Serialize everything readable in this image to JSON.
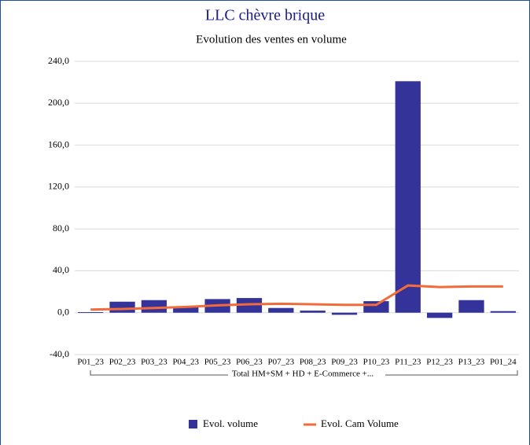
{
  "chart_data": {
    "type": "bar_line",
    "title": "LLC chèvre brique",
    "subtitle": "Evolution des ventes en volume",
    "group_label": "Total HM+SM + HD + E-Commerce +...",
    "categories": [
      "P01_23",
      "P02_23",
      "P03_23",
      "P04_23",
      "P05_23",
      "P06_23",
      "P07_23",
      "P08_23",
      "P09_23",
      "P10_23",
      "P11_23",
      "P12_23",
      "P13_23",
      "P01_24"
    ],
    "series": [
      {
        "name": "Evol. volume",
        "type": "bar",
        "color": "#333399",
        "values": [
          0.5,
          10.5,
          12,
          6,
          13,
          14,
          4.5,
          2,
          -2,
          11,
          221,
          -5,
          12,
          1.5
        ]
      },
      {
        "name": "Evol. Cam Volume",
        "type": "line",
        "color": "#f26b3a",
        "values": [
          3,
          3.5,
          4.5,
          5.5,
          7,
          8,
          8.5,
          8,
          7.5,
          7.5,
          26,
          24.5,
          25,
          25
        ]
      }
    ],
    "ylim": [
      -40,
      240
    ],
    "yticks": [
      {
        "value": -40,
        "label": "-40,0"
      },
      {
        "value": 0,
        "label": "0,0"
      },
      {
        "value": 40,
        "label": "40,0"
      },
      {
        "value": 80,
        "label": "80,0"
      },
      {
        "value": 120,
        "label": "120,0"
      },
      {
        "value": 160,
        "label": "160,0"
      },
      {
        "value": 200,
        "label": "200,0"
      },
      {
        "value": 240,
        "label": "240,0"
      }
    ],
    "grid": true,
    "legend": "bottom"
  }
}
